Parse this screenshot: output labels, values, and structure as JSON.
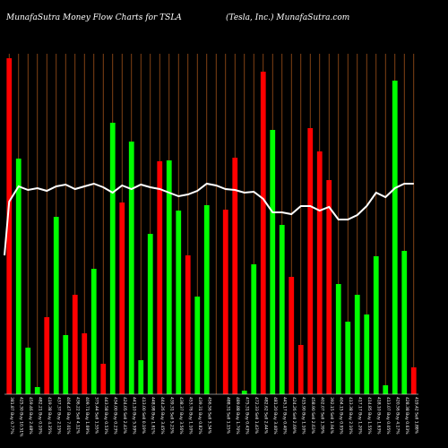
{
  "chart_data": {
    "type": "bar",
    "title": "MunafaSutra  Money Flow  Charts for TSLA",
    "subtitle": "(Tesla,  Inc.)  MunafaSutra.com",
    "ylim": [
      0,
      380
    ],
    "line_ylim": [
      0,
      380
    ],
    "grid": true,
    "categories": [
      "381.87 Buy 0.77%",
      "425.30 Buy 10.51%",
      "459.46 Buy 2.48%",
      "482.21 Buy 0.10%",
      "419.38 Buy 4.35%",
      "437.37 Buy 2.15%",
      "404.47 Buy 7.01%",
      "436.22 Sell 4.12%",
      "409.71 Buy 1.69%",
      "375.44 Sell 1.55%",
      "443.58 Buy 0.53%",
      "434.00 Buy 0.23%",
      "424.05 Sell 2.43%",
      "441.10 Buy 5.59%",
      "413.00 Sell 0.19%",
      "448.98 Buy 1.61%",
      "444.26 Buy 3.45%",
      "439.31 Sell 5.23%",
      "438.37 Buy 3.56%",
      "453.76 Buy 1.10%",
      "439.31 Buy 0.82%",
      "456.56 Sell 3.34%",
      "",
      "488.31 Sell 1.15%",
      "489.88 Buy 1.70%",
      "475.31 Buy 0.43%",
      "472.33 Sell 1.43%",
      "482.62 Sell 2.44%",
      "481.20 Buy 3.40%",
      "445.17 Buy 0.40%",
      "424.26 Sell 2.69%",
      "415.90 Buy 1.10%",
      "458.90 Sell 2.63%",
      "402.07 Sell 1.39%",
      "392.15 Sell 1.94%",
      "404.15 Buy 0.95%",
      "413.38 Buy 2.10%",
      "417.17 Buy 1.20%",
      "414.85 Buy 1.55%",
      "418.10 Buy 1.63%",
      "413.07 Buy 0.05%",
      "420.56 Buy 4.17%",
      "428.38 Buy 0.63%",
      "419.42 Sell 1.88%"
    ],
    "series": [
      {
        "values": [
          375,
          263,
          52,
          8,
          86,
          198,
          66,
          111,
          68,
          140,
          34,
          303,
          214,
          282,
          38,
          179,
          260,
          261,
          205,
          155,
          109,
          211,
          0,
          206,
          264,
          4,
          145,
          360,
          295,
          189,
          131,
          55,
          297,
          271,
          239,
          123,
          81,
          111,
          89,
          154,
          10,
          350,
          160,
          30
        ],
        "colors": [
          "red",
          "green",
          "green",
          "green",
          "red",
          "green",
          "green",
          "red",
          "red",
          "green",
          "red",
          "green",
          "red",
          "green",
          "green",
          "green",
          "red",
          "green",
          "green",
          "red",
          "green",
          "green",
          "red",
          "red",
          "red",
          "green",
          "green",
          "red",
          "green",
          "green",
          "red",
          "red",
          "red",
          "red",
          "red",
          "green",
          "green",
          "green",
          "green",
          "green",
          "green",
          "green",
          "green",
          "red"
        ]
      },
      {
        "values": [
          215,
          232,
          228,
          230,
          227,
          232,
          234,
          229,
          232,
          235,
          231,
          225,
          233,
          229,
          234,
          231,
          229,
          225,
          221,
          223,
          227,
          235,
          233,
          229,
          228,
          225,
          226,
          218,
          203,
          203,
          201,
          210,
          210,
          205,
          209,
          195,
          195,
          200,
          210,
          225,
          220,
          230,
          235,
          235
        ]
      }
    ],
    "colors": {
      "background": "#000000",
      "grid": "#a0521a",
      "buy": "#00ff00",
      "sell": "#ff0000",
      "line": "#ffffff"
    }
  }
}
